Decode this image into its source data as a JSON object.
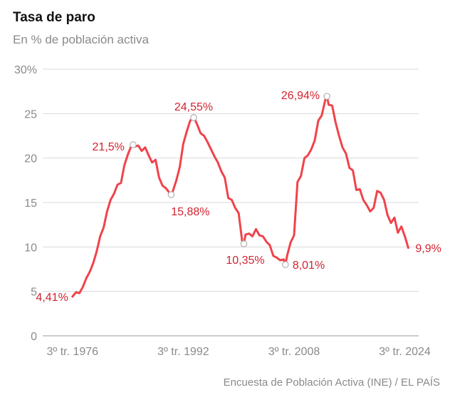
{
  "header": {
    "title": "Tasa de paro",
    "subtitle": "En % de población activa"
  },
  "footer": {
    "source": "Encuesta de Población Activa (INE) / EL PAÍS"
  },
  "colors": {
    "line": "#f0434b",
    "annotation": "#d2232f",
    "grid": "#d9d9d9",
    "axis_text": "#8a8a8a"
  },
  "chart_data": {
    "type": "line",
    "title": "Tasa de paro",
    "subtitle": "En % de población activa",
    "ylim": [
      0,
      30
    ],
    "yticks": [
      0,
      5,
      10,
      15,
      20,
      25,
      30
    ],
    "ytick_labels": [
      "0",
      "5",
      "10",
      "15",
      "20",
      "25",
      "30%"
    ],
    "x_tick_positions": [
      1976.5,
      1992.5,
      2008.5,
      2024.5
    ],
    "x_tick_labels": [
      "3º tr. 1976",
      "3º tr. 1992",
      "3º tr. 2008",
      "3º tr. 2024"
    ],
    "grid": "horizontal",
    "series": [
      {
        "x": [
          1976.5,
          1977.0,
          1977.5,
          1978.0,
          1978.5,
          1979.0,
          1979.5,
          1980.0,
          1980.5,
          1981.0,
          1981.5,
          1982.0,
          1982.5,
          1983.0,
          1983.5,
          1984.0,
          1984.5,
          1985.0,
          1985.25,
          1985.5,
          1986.0,
          1986.5,
          1987.0,
          1987.5,
          1988.0,
          1988.5,
          1989.0,
          1989.5,
          1990.0,
          1990.5,
          1990.75,
          1991.0,
          1991.5,
          1992.0,
          1992.5,
          1993.0,
          1993.5,
          1994.0,
          1994.25,
          1994.5,
          1995.0,
          1995.5,
          1996.0,
          1996.5,
          1997.0,
          1997.5,
          1998.0,
          1998.5,
          1999.0,
          1999.5,
          2000.0,
          2000.5,
          2001.0,
          2001.25,
          2001.5,
          2002.0,
          2002.5,
          2003.0,
          2003.5,
          2004.0,
          2004.5,
          2005.0,
          2005.5,
          2006.0,
          2006.5,
          2007.0,
          2007.25,
          2007.5,
          2008.0,
          2008.5,
          2009.0,
          2009.5,
          2010.0,
          2010.5,
          2011.0,
          2011.5,
          2012.0,
          2012.5,
          2013.0,
          2013.25,
          2013.5,
          2014.0,
          2014.5,
          2015.0,
          2015.5,
          2016.0,
          2016.5,
          2017.0,
          2017.5,
          2018.0,
          2018.5,
          2019.0,
          2019.5,
          2020.0,
          2020.5,
          2021.0,
          2021.5,
          2022.0,
          2022.5,
          2023.0,
          2023.5,
          2024.0,
          2024.5,
          2025.0
        ],
        "values": [
          4.41,
          4.9,
          4.8,
          5.5,
          6.5,
          7.2,
          8.2,
          9.5,
          11.2,
          12.2,
          14.0,
          15.3,
          16.0,
          17.0,
          17.2,
          19.2,
          20.4,
          21.4,
          21.5,
          21.3,
          21.4,
          20.8,
          21.2,
          20.3,
          19.5,
          19.8,
          17.8,
          16.9,
          16.6,
          16.1,
          15.88,
          16.3,
          17.5,
          19.0,
          21.6,
          23.0,
          24.2,
          24.55,
          24.2,
          23.8,
          22.8,
          22.5,
          21.8,
          21.0,
          20.2,
          19.5,
          18.5,
          17.8,
          15.5,
          15.3,
          14.4,
          13.8,
          10.7,
          10.35,
          11.4,
          11.5,
          11.2,
          12.0,
          11.3,
          11.2,
          10.6,
          10.2,
          9.0,
          8.8,
          8.5,
          8.6,
          8.01,
          9.0,
          10.5,
          11.3,
          17.3,
          18.0,
          20.0,
          20.3,
          21.0,
          22.0,
          24.2,
          24.8,
          26.5,
          26.94,
          26.0,
          25.9,
          24.0,
          22.5,
          21.2,
          20.5,
          18.9,
          18.6,
          16.4,
          16.5,
          15.3,
          14.7,
          14.0,
          14.4,
          16.3,
          16.1,
          15.3,
          13.6,
          12.7,
          13.3,
          11.6,
          12.3,
          11.2,
          9.9
        ]
      }
    ],
    "annotations": [
      {
        "x": 1976.5,
        "y": 4.41,
        "label": "4,41%",
        "marker": false
      },
      {
        "x": 1985.25,
        "y": 21.5,
        "label": "21,5%",
        "marker": true
      },
      {
        "x": 1990.75,
        "y": 15.88,
        "label": "15,88%",
        "marker": true
      },
      {
        "x": 1994.0,
        "y": 24.55,
        "label": "24,55%",
        "marker": true
      },
      {
        "x": 2001.25,
        "y": 10.35,
        "label": "10,35%",
        "marker": true
      },
      {
        "x": 2007.25,
        "y": 8.01,
        "label": "8,01%",
        "marker": true
      },
      {
        "x": 2013.25,
        "y": 26.94,
        "label": "26,94%",
        "marker": true
      },
      {
        "x": 2025.0,
        "y": 9.9,
        "label": "9,9%",
        "marker": false
      }
    ]
  }
}
